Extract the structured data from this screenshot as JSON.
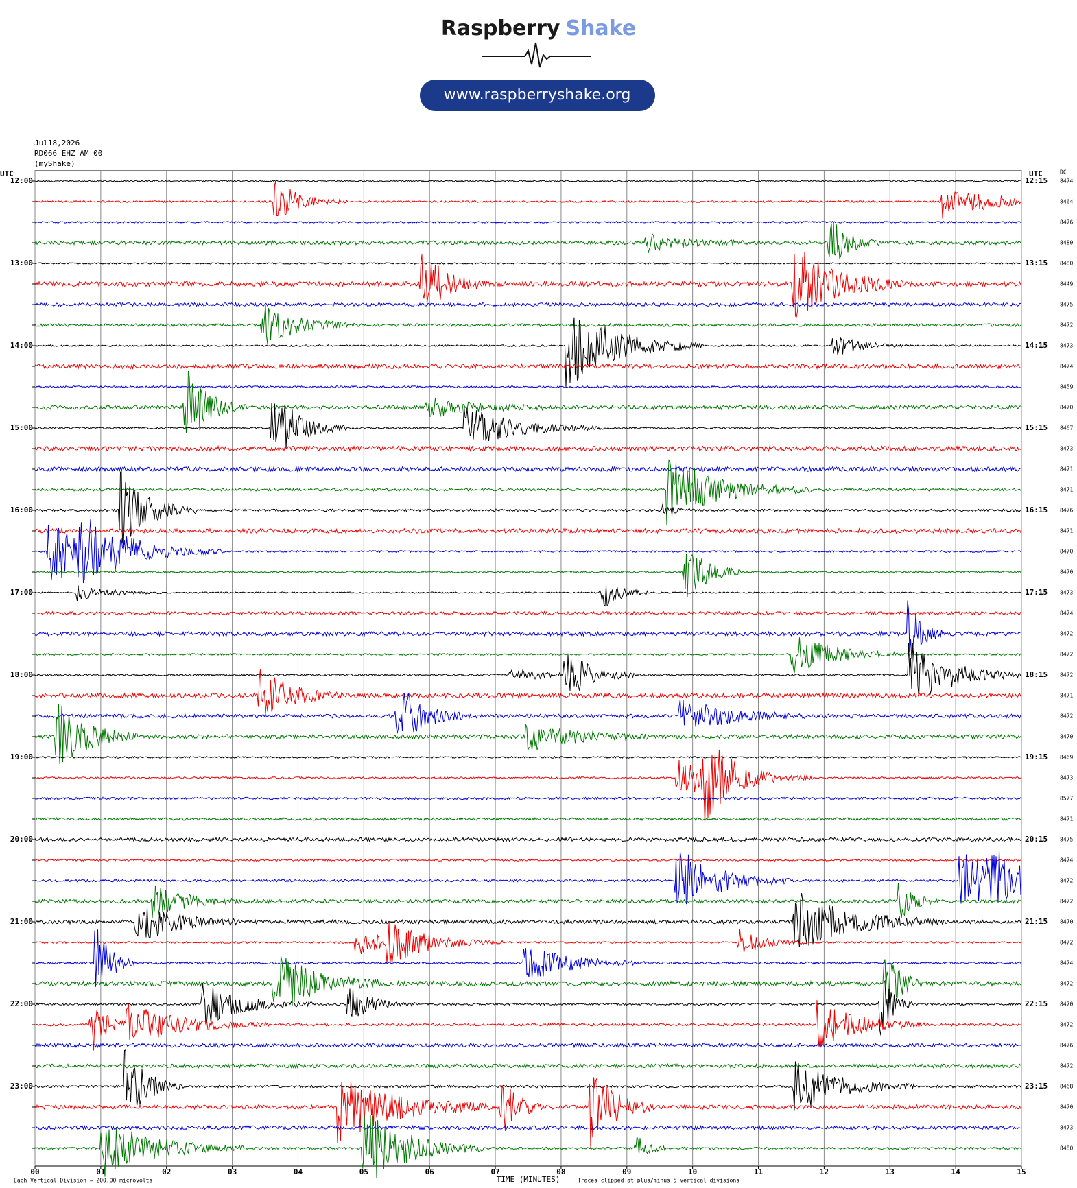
{
  "header": {
    "brand": "Raspberry",
    "brand_accent": "Shake",
    "url": "www.raspberryshake.org"
  },
  "station": {
    "date": "Jul18,2026",
    "channel": "RD066 EHZ AM 00",
    "source": "(myShake)"
  },
  "axes": {
    "left_unit": "UTC",
    "right_unit": "UTC",
    "dc_label": "DC",
    "left_times": [
      "12:00",
      "13:00",
      "14:00",
      "15:00",
      "16:00",
      "17:00",
      "18:00",
      "19:00",
      "20:00",
      "21:00",
      "22:00",
      "23:00"
    ],
    "right_times": [
      "12:15",
      "13:15",
      "14:15",
      "15:15",
      "16:15",
      "17:15",
      "18:15",
      "19:15",
      "20:15",
      "21:15",
      "22:15",
      "23:15"
    ],
    "dc_values": [
      "8474",
      "8464",
      "8476",
      "8480",
      "8480",
      "8449",
      "8475",
      "8472",
      "8473",
      "8474",
      "8459",
      "8470",
      "8467",
      "8473",
      "8471",
      "8471",
      "8476",
      "8471",
      "8470",
      "8470",
      "8473",
      "8474",
      "8472",
      "8472",
      "8472",
      "8471",
      "8472",
      "8470",
      "8469",
      "8473",
      "8577",
      "8471",
      "8475",
      "8474",
      "8472",
      "8472",
      "8470",
      "8472",
      "8474",
      "8472",
      "8470",
      "8472",
      "8476",
      "8472",
      "8468",
      "8470",
      "8473",
      "8480"
    ],
    "x_ticks": [
      "00",
      "01",
      "02",
      "03",
      "04",
      "05",
      "06",
      "07",
      "08",
      "09",
      "10",
      "11",
      "12",
      "13",
      "14",
      "15"
    ],
    "x_label": "TIME (MINUTES)"
  },
  "footer": {
    "scale_note": "Each Vertical Division =  200.00 microvolts",
    "clip_note": "Traces clipped at plus/minus 5 vertical divisions"
  }
}
